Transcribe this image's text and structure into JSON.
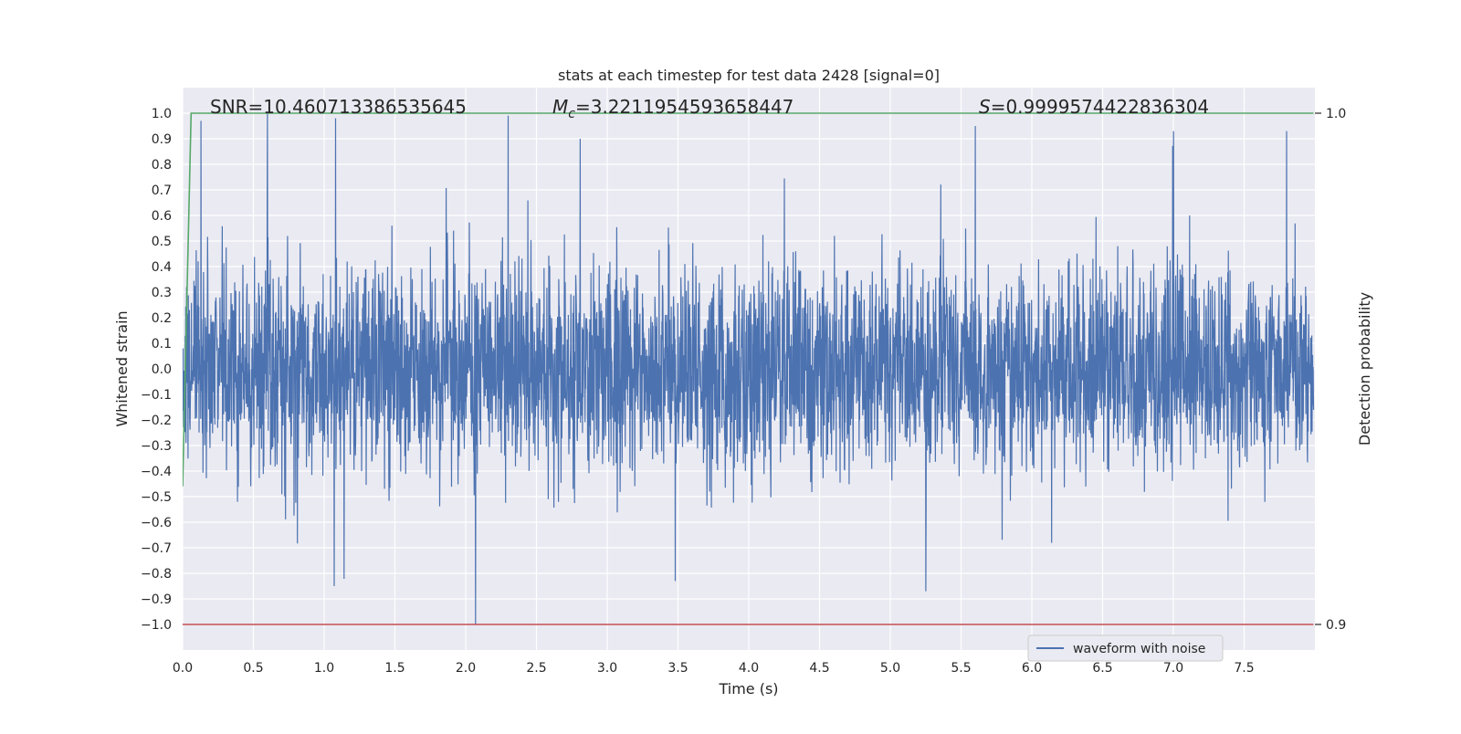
{
  "chart_data": {
    "type": "line",
    "title": "stats at each timestep for test data 2428 [signal=0]",
    "xlabel": "Time (s)",
    "ylabel": "Whitened strain",
    "y2label": "Detection probability",
    "xlim": [
      0.0,
      8.0
    ],
    "ylim": [
      -1.1,
      1.1
    ],
    "y2lim": [
      0.9,
      1.0
    ],
    "x_ticks": [
      0.0,
      0.5,
      1.0,
      1.5,
      2.0,
      2.5,
      3.0,
      3.5,
      4.0,
      4.5,
      5.0,
      5.5,
      6.0,
      6.5,
      7.0,
      7.5
    ],
    "x_tick_labels": [
      "0.0",
      "0.5",
      "1.0",
      "1.5",
      "2.0",
      "2.5",
      "3.0",
      "3.5",
      "4.0",
      "4.5",
      "5.0",
      "5.5",
      "6.0",
      "6.5",
      "7.0",
      "7.5"
    ],
    "y_ticks": [
      1.0,
      0.9,
      0.8,
      0.7,
      0.6,
      0.5,
      0.4,
      0.3,
      0.2,
      0.1,
      0.0,
      -0.1,
      -0.2,
      -0.3,
      -0.4,
      -0.5,
      -0.6,
      -0.7,
      -0.8,
      -0.9,
      -1.0
    ],
    "y_tick_labels": [
      "1.0",
      "0.9",
      "0.8",
      "0.7",
      "0.6",
      "0.5",
      "0.4",
      "0.3",
      "0.2",
      "0.1",
      "0.0",
      "−0.1",
      "−0.2",
      "−0.3",
      "−0.4",
      "−0.5",
      "−0.6",
      "−0.7",
      "−0.8",
      "−0.9",
      "−1.0"
    ],
    "y2_ticks": [
      1.0,
      0.9
    ],
    "y2_tick_labels": [
      "1.0",
      "0.9"
    ],
    "grid": true,
    "legend_position": "lower-right",
    "annotations": {
      "snr": "SNR=10.460713386535645",
      "mc_symbol": "M",
      "mc_sub": "c",
      "mc_value": "=3.2211954593658447",
      "s_symbol": "S",
      "s_value": "=0.9999574422836304"
    },
    "series": [
      {
        "name": "waveform with noise",
        "color": "#4c72b0",
        "description_of_data": "noisy whitened strain, dense oscillation approx. within -0.6..0.6 with occasional spikes",
        "x_range": [
          0.0,
          7.99
        ],
        "spikes": [
          [
            0.13,
            0.97
          ],
          [
            0.6,
            1.0
          ],
          [
            1.08,
            0.98
          ],
          [
            2.07,
            -1.0
          ],
          [
            2.3,
            0.99
          ],
          [
            5.25,
            -0.87
          ],
          [
            5.6,
            0.95
          ],
          [
            7.0,
            0.93
          ],
          [
            7.8,
            0.93
          ],
          [
            1.07,
            -0.85
          ],
          [
            3.48,
            -0.83
          ]
        ]
      },
      {
        "name": "",
        "color": "#55a868",
        "axis": "y2",
        "points": [
          [
            0.0,
            0.927
          ],
          [
            0.06,
            1.0
          ],
          [
            7.99,
            1.0
          ]
        ]
      },
      {
        "name": "",
        "color": "#c44e52",
        "axis": "y2",
        "points": [
          [
            0.0,
            0.9
          ],
          [
            7.99,
            0.9
          ]
        ]
      }
    ],
    "colors": {
      "plot_background": "#eaeaf2",
      "grid": "#ffffff",
      "text": "#262626"
    }
  }
}
